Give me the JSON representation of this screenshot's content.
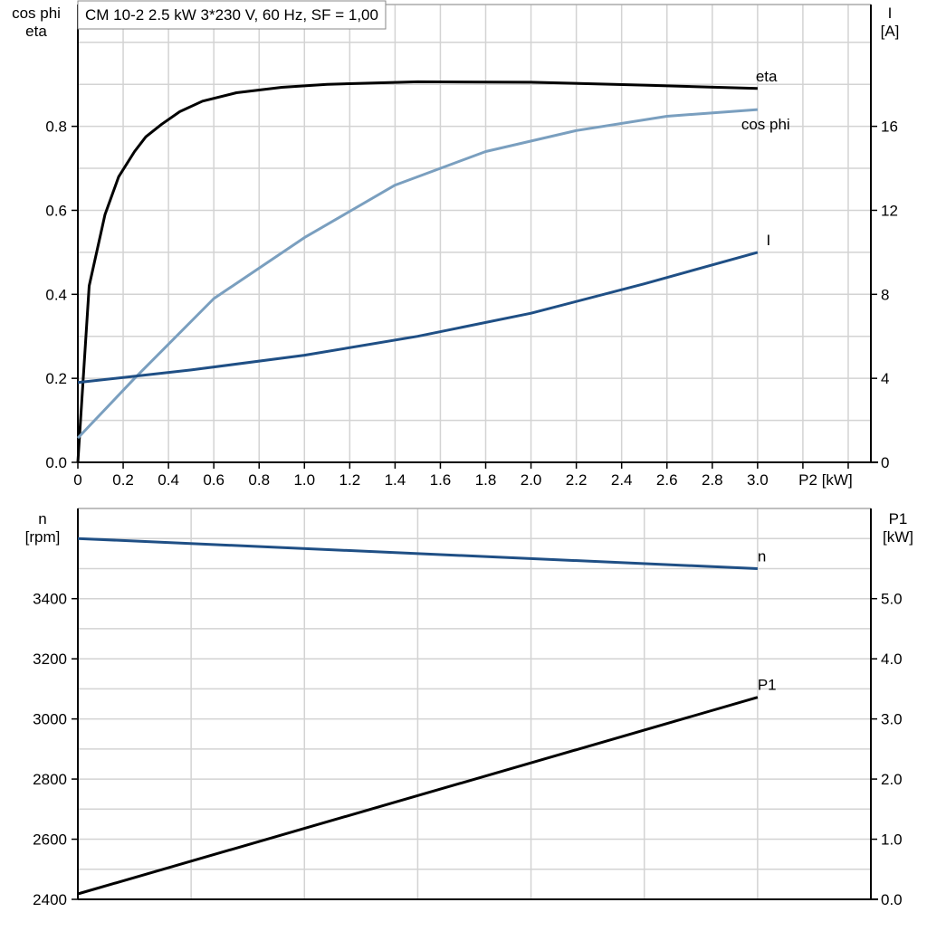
{
  "chart_data": [
    {
      "type": "line",
      "title": "CM 10-2   2.5 kW   3*230 V, 60 Hz, SF = 1,00",
      "xlabel": "P2 [kW]",
      "ylabel_left": [
        "cos phi",
        "eta"
      ],
      "ylabel_right": [
        "I",
        "[A]"
      ],
      "xlim": [
        0,
        3.5
      ],
      "ylim_left": [
        0,
        1.09
      ],
      "ylim_right": [
        0,
        21.8
      ],
      "x_ticks": [
        "0",
        "0.2",
        "0.4",
        "0.6",
        "0.8",
        "1.0",
        "1.2",
        "1.4",
        "1.6",
        "1.8",
        "2.0",
        "2.2",
        "2.4",
        "2.6",
        "2.8",
        "3.0"
      ],
      "y_left_ticks": [
        "0.0",
        "0.2",
        "0.4",
        "0.6",
        "0.8"
      ],
      "y_right_ticks": [
        "0",
        "4",
        "8",
        "12",
        "16"
      ],
      "grid": true,
      "series": [
        {
          "name": "eta",
          "axis": "left",
          "color": "#000000",
          "x": [
            0,
            0.05,
            0.12,
            0.18,
            0.25,
            0.3,
            0.37,
            0.45,
            0.55,
            0.7,
            0.9,
            1.1,
            1.5,
            2.0,
            2.5,
            3.0
          ],
          "y": [
            0,
            0.42,
            0.59,
            0.68,
            0.74,
            0.775,
            0.805,
            0.835,
            0.86,
            0.88,
            0.893,
            0.9,
            0.906,
            0.905,
            0.898,
            0.89
          ]
        },
        {
          "name": "cos phi",
          "axis": "left",
          "color": "#7a9fbf",
          "x": [
            0,
            0.25,
            0.6,
            1.0,
            1.4,
            1.8,
            2.2,
            2.6,
            3.0
          ],
          "y": [
            0.058,
            0.2,
            0.39,
            0.535,
            0.66,
            0.74,
            0.79,
            0.824,
            0.84
          ]
        },
        {
          "name": "I",
          "axis": "right",
          "color": "#1f4f85",
          "x": [
            0,
            0.5,
            1.0,
            1.5,
            2.0,
            2.5,
            3.0
          ],
          "y": [
            3.8,
            4.4,
            5.1,
            6.0,
            7.1,
            8.5,
            10.0
          ]
        }
      ]
    },
    {
      "type": "line",
      "ylabel_left": [
        "n",
        "[rpm]"
      ],
      "ylabel_right": [
        "P1",
        "[kW]"
      ],
      "xlim": [
        0,
        3.5
      ],
      "ylim_left": [
        2400,
        3700
      ],
      "ylim_right": [
        0,
        6.5
      ],
      "y_left_ticks": [
        "2400",
        "2600",
        "2800",
        "3000",
        "3200",
        "3400"
      ],
      "y_right_ticks": [
        "0.0",
        "1.0",
        "2.0",
        "3.0",
        "4.0",
        "5.0"
      ],
      "grid": true,
      "series": [
        {
          "name": "n",
          "axis": "left",
          "color": "#1f4f85",
          "x": [
            0,
            3.0
          ],
          "y": [
            3600,
            3500
          ]
        },
        {
          "name": "P1",
          "axis": "right",
          "color": "#000000",
          "x": [
            0,
            3.0
          ],
          "y": [
            0.09,
            3.36
          ]
        }
      ]
    }
  ]
}
